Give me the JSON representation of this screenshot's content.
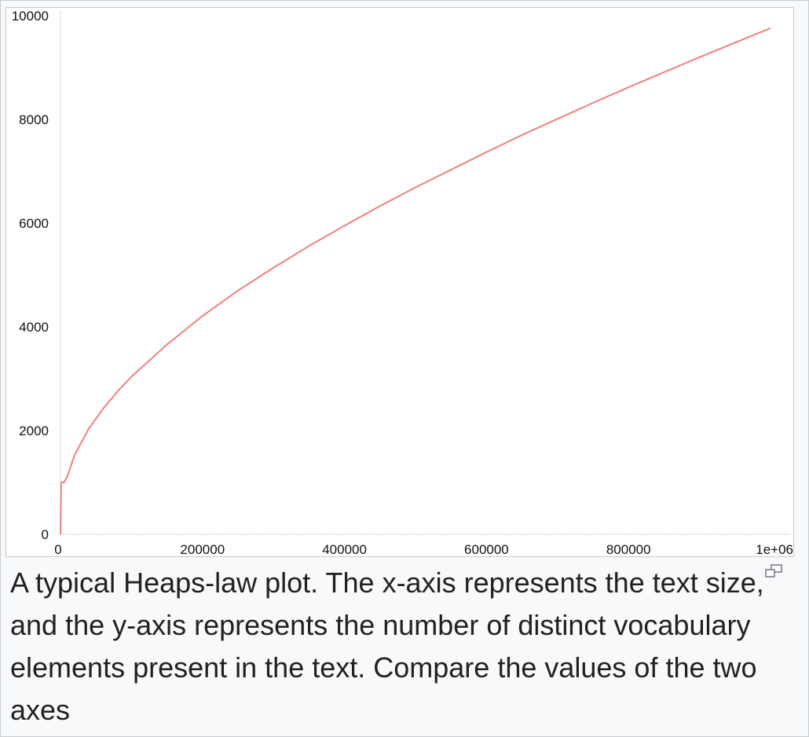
{
  "chart_data": {
    "type": "line",
    "title": "",
    "xlabel": "",
    "ylabel": "",
    "xlim": [
      0,
      1000000
    ],
    "ylim": [
      0,
      10000
    ],
    "x_ticks": [
      0,
      200000,
      400000,
      600000,
      800000,
      1000000
    ],
    "x_tick_labels": [
      "0",
      "200000",
      "400000",
      "600000",
      "800000",
      "1e+06"
    ],
    "y_ticks": [
      0,
      2000,
      4000,
      6000,
      8000,
      10000
    ],
    "y_tick_labels": [
      "0",
      "2000",
      "4000",
      "6000",
      "8000",
      "10000"
    ],
    "grid": false,
    "series": [
      {
        "color": "#f08080",
        "x": [
          0,
          1000,
          5000,
          10000,
          20000,
          40000,
          60000,
          80000,
          100000,
          150000,
          200000,
          250000,
          300000,
          350000,
          400000,
          450000,
          500000,
          550000,
          600000,
          650000,
          700000,
          750000,
          800000,
          850000,
          900000,
          950000,
          1000000
        ],
        "y": [
          0,
          1000,
          1000,
          1130,
          1530,
          2040,
          2420,
          2750,
          3040,
          3660,
          4210,
          4700,
          5140,
          5560,
          5950,
          6330,
          6690,
          7030,
          7370,
          7700,
          8010,
          8320,
          8620,
          8910,
          9200,
          9480,
          9760
        ]
      }
    ]
  },
  "caption": {
    "text": "A typical Heaps-law plot. The x-axis represents the text size, and the y-axis represents the number of distinct vocabulary elements present in the text. Compare the values of the two axes"
  },
  "icons": {
    "enlarge": "magnify-icon"
  }
}
